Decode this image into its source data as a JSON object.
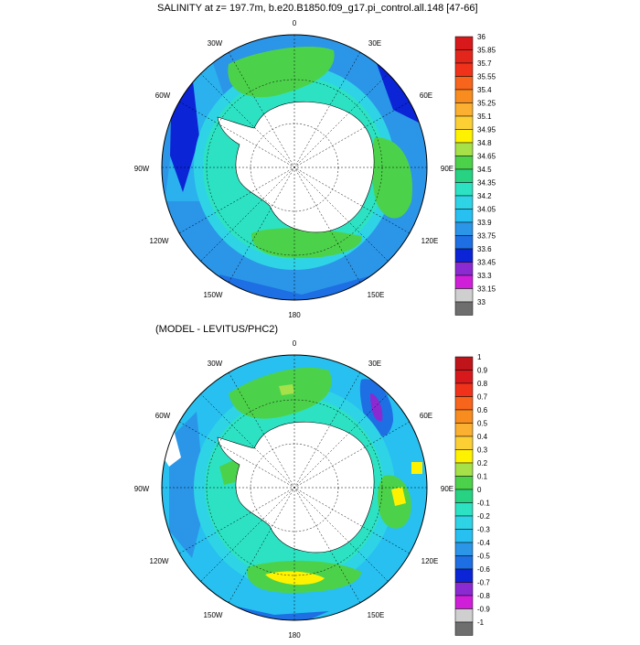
{
  "maps": [
    {
      "title": "SALINITY at z= 197.7m, b.e20.B1850.f09_g17.pi_control.all.148 [47-66]",
      "lon_labels": [
        "0",
        "30E",
        "60E",
        "90E",
        "120E",
        "150E",
        "180",
        "150W",
        "120W",
        "90W",
        "60W",
        "30W"
      ],
      "colorbar": {
        "labels": [
          "36",
          "35.85",
          "35.7",
          "35.55",
          "35.4",
          "35.25",
          "35.1",
          "34.95",
          "34.8",
          "34.65",
          "34.5",
          "34.35",
          "34.2",
          "34.05",
          "33.9",
          "33.75",
          "33.6",
          "33.45",
          "33.3",
          "33.15",
          "33"
        ],
        "colors": [
          "#d7191c",
          "#e3261b",
          "#f0321a",
          "#f7641c",
          "#f98c1f",
          "#fbb032",
          "#fcd035",
          "#fff200",
          "#a6e14a",
          "#4cd24a",
          "#27d283",
          "#2de2c3",
          "#2fd3e6",
          "#27c0f0",
          "#2b95e8",
          "#1d6fe3",
          "#0a24d6",
          "#8b2ad1",
          "#d01fd9",
          "#cfcfcf",
          "#6e6e6e"
        ]
      }
    },
    {
      "title": "(MODEL - LEVITUS/PHC2)",
      "lon_labels": [
        "0",
        "30E",
        "60E",
        "90E",
        "120E",
        "150E",
        "180",
        "150W",
        "120W",
        "90W",
        "60W",
        "30W"
      ],
      "colorbar": {
        "labels": [
          "1",
          "0.9",
          "0.8",
          "0.7",
          "0.6",
          "0.5",
          "0.4",
          "0.3",
          "0.2",
          "0.1",
          "0",
          "-0.1",
          "-0.2",
          "-0.3",
          "-0.4",
          "-0.5",
          "-0.6",
          "-0.7",
          "-0.8",
          "-0.9",
          "-1"
        ],
        "colors": [
          "#c0141b",
          "#d7191c",
          "#f0321a",
          "#f7641c",
          "#f98c1f",
          "#fbb032",
          "#fcd035",
          "#fff200",
          "#a6e14a",
          "#4cd24a",
          "#27d283",
          "#2de2c3",
          "#2fd3e6",
          "#27c0f0",
          "#2b95e8",
          "#1d6fe3",
          "#0a24d6",
          "#8b2ad1",
          "#d01fd9",
          "#cfcfcf",
          "#6e6e6e"
        ]
      }
    }
  ]
}
